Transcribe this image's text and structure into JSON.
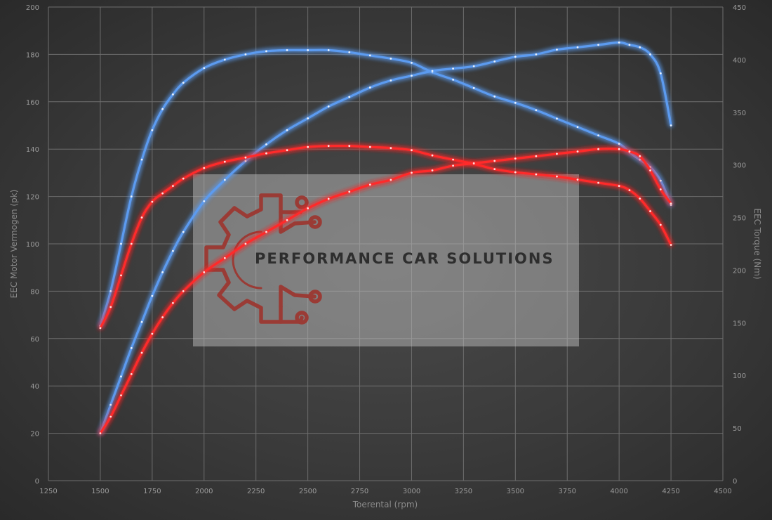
{
  "chart_data": {
    "type": "line",
    "xlabel": "Toerental (rpm)",
    "ylabel_left": "EEC Motor Vermogen (pk)",
    "ylabel_right": "EEC Torque (Nm)",
    "xlim": [
      1250,
      4500
    ],
    "ylim_left": [
      0,
      200
    ],
    "ylim_right": [
      0,
      450
    ],
    "x_ticks": [
      1250,
      1500,
      1750,
      2000,
      2250,
      2500,
      2750,
      3000,
      3250,
      3500,
      3750,
      4000,
      4250,
      4500
    ],
    "y_left_ticks": [
      0,
      20,
      40,
      60,
      80,
      100,
      120,
      140,
      160,
      180,
      200
    ],
    "y_right_ticks": [
      0,
      50,
      100,
      150,
      200,
      250,
      300,
      350,
      400,
      450
    ],
    "grid": true,
    "colors": {
      "blue": "#5b9bf0",
      "red": "#ff2a2a"
    },
    "series": [
      {
        "color": "blue",
        "axis": "right",
        "x": [
          1500,
          1550,
          1600,
          1650,
          1700,
          1750,
          1800,
          1850,
          1900,
          2000,
          2100,
          2200,
          2300,
          2400,
          2500,
          2600,
          2700,
          2800,
          2900,
          3000,
          3100,
          3200,
          3300,
          3400,
          3500,
          3600,
          3700,
          3800,
          3900,
          4000,
          4050,
          4100,
          4150,
          4200,
          4250
        ],
        "y": [
          147,
          180,
          225,
          270,
          305,
          333,
          353,
          367,
          378,
          392,
          400,
          405,
          408,
          409,
          409,
          409,
          407,
          404,
          401,
          397,
          388,
          381,
          373,
          365,
          359,
          352,
          344,
          336,
          328,
          320,
          312,
          305,
          298,
          285,
          262
        ]
      },
      {
        "color": "blue",
        "axis": "left",
        "x": [
          1500,
          1550,
          1600,
          1650,
          1700,
          1750,
          1800,
          1850,
          1900,
          2000,
          2100,
          2200,
          2300,
          2400,
          2500,
          2600,
          2700,
          2800,
          2900,
          3000,
          3100,
          3200,
          3300,
          3400,
          3500,
          3600,
          3700,
          3800,
          3900,
          4000,
          4050,
          4100,
          4150,
          4200,
          4250
        ],
        "y": [
          20,
          32,
          44,
          56,
          67,
          78,
          88,
          97,
          105,
          118,
          127,
          135,
          142,
          148,
          153,
          158,
          162,
          166,
          169,
          171,
          173,
          174,
          175,
          177,
          179,
          180,
          182,
          183,
          184,
          185,
          184,
          183,
          180,
          172,
          150
        ]
      },
      {
        "color": "red",
        "axis": "right",
        "x": [
          1500,
          1550,
          1600,
          1650,
          1700,
          1750,
          1800,
          1850,
          1900,
          2000,
          2100,
          2200,
          2300,
          2400,
          2500,
          2600,
          2700,
          2800,
          2900,
          3000,
          3100,
          3200,
          3300,
          3400,
          3500,
          3600,
          3700,
          3800,
          3900,
          4000,
          4050,
          4100,
          4150,
          4200,
          4250
        ],
        "y": [
          145,
          165,
          195,
          225,
          250,
          265,
          273,
          280,
          287,
          297,
          303,
          307,
          311,
          314,
          317,
          318,
          318,
          317,
          316,
          314,
          309,
          305,
          301,
          296,
          293,
          291,
          289,
          286,
          283,
          280,
          276,
          268,
          256,
          243,
          224
        ]
      },
      {
        "color": "red",
        "axis": "left",
        "x": [
          1500,
          1550,
          1600,
          1650,
          1700,
          1750,
          1800,
          1850,
          1900,
          2000,
          2100,
          2200,
          2300,
          2400,
          2500,
          2600,
          2700,
          2800,
          2900,
          3000,
          3100,
          3200,
          3300,
          3400,
          3500,
          3600,
          3700,
          3800,
          3900,
          4000,
          4050,
          4100,
          4150,
          4200,
          4250
        ],
        "y": [
          20,
          27,
          36,
          45,
          54,
          62,
          69,
          75,
          80,
          88,
          94,
          100,
          105,
          110,
          115,
          119,
          122,
          125,
          127,
          130,
          131,
          133,
          134,
          135,
          136,
          137,
          138,
          139,
          140,
          140,
          139,
          137,
          131,
          123,
          117
        ]
      }
    ]
  },
  "watermark": {
    "text": "PERFORMANCE CAR SOLUTIONS",
    "logo_icon": "gear-circuit-icon"
  }
}
